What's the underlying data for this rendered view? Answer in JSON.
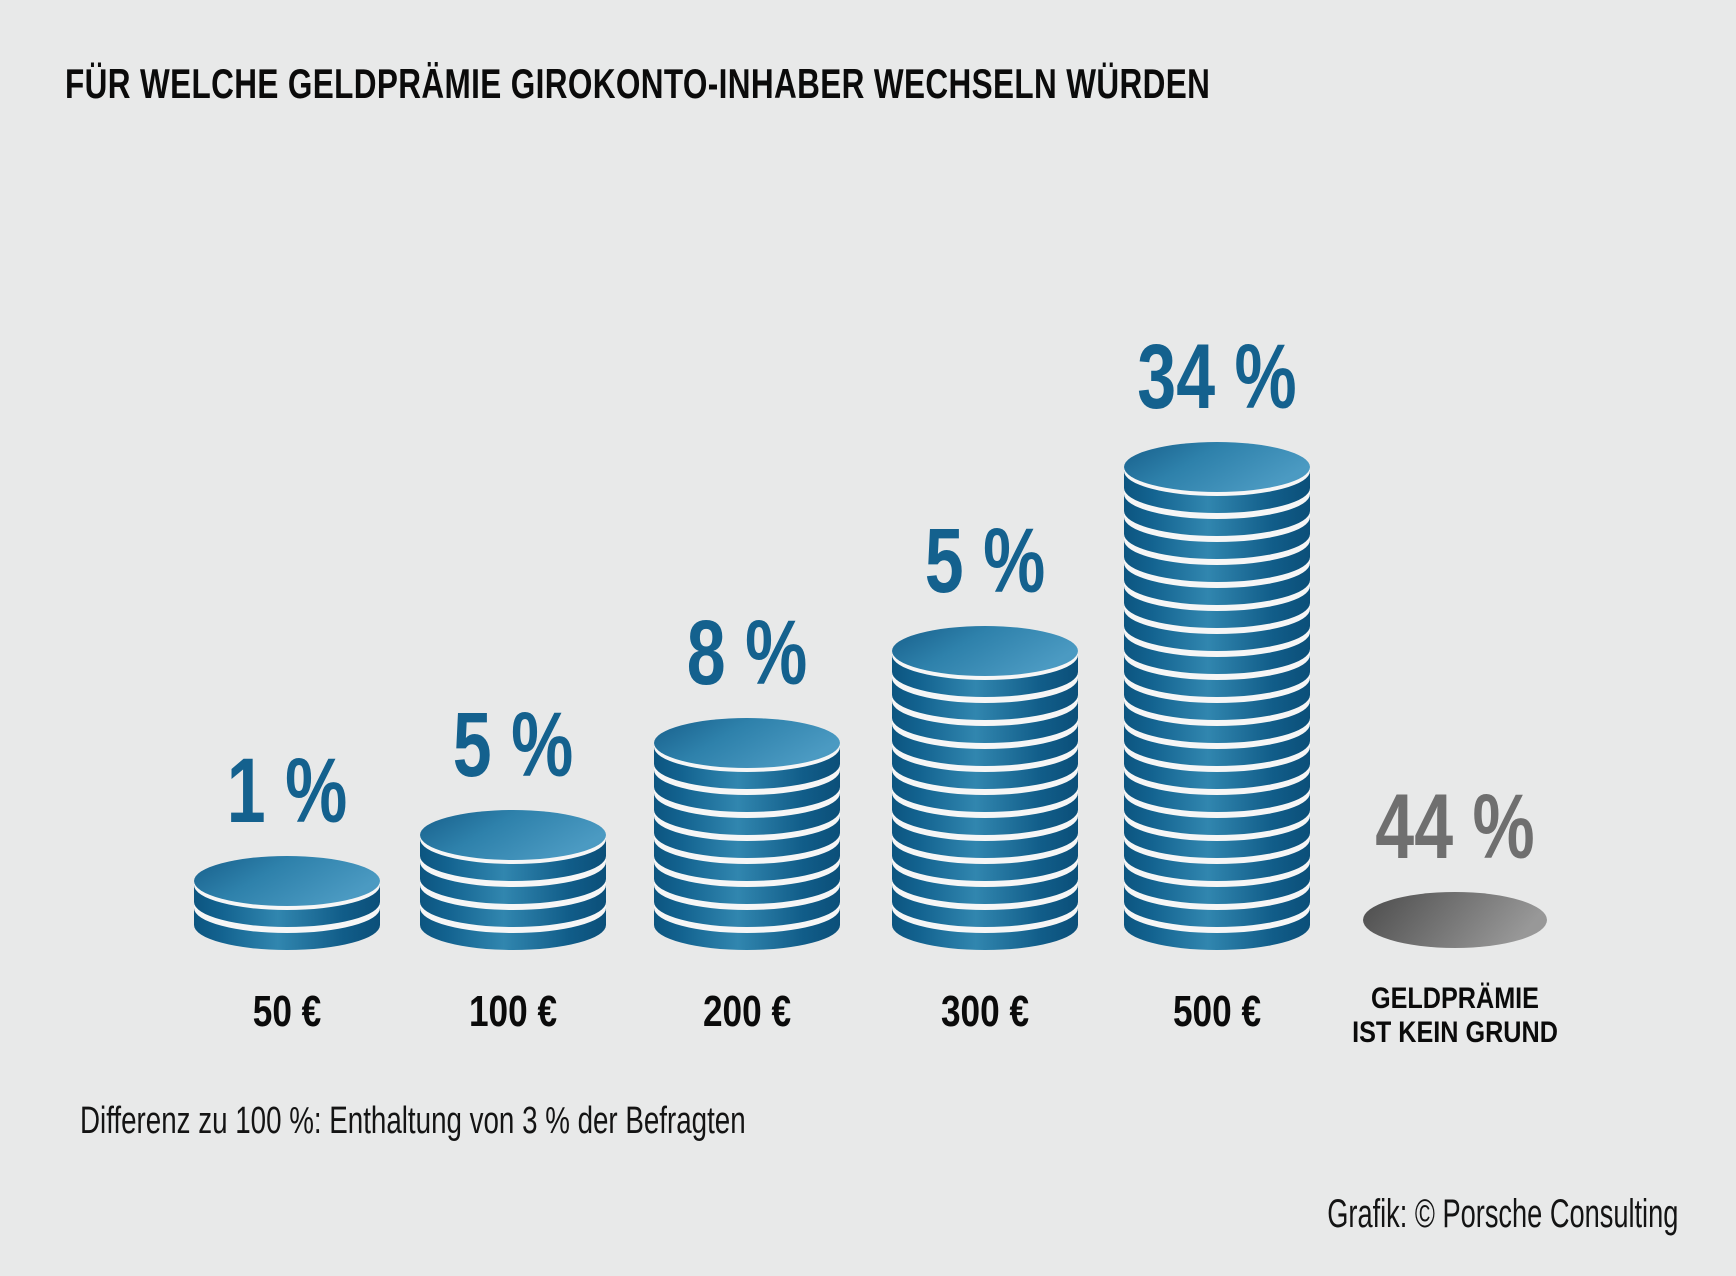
{
  "title": "FÜR WELCHE GELDPRÄMIE GIROKONTO-INHABER WECHSELN WÜRDEN",
  "footnote": "Differenz zu 100 %: Enthaltung von 3 % der Befragten",
  "credit": "Grafik: © Porsche Consulting",
  "colors": {
    "background": "#e8e9e9",
    "accent_blue": "#14618e",
    "coin_face_light": "#4b9ac2",
    "coin_face_dark": "#175f8b",
    "coin_side_dark": "#0c5580",
    "coin_gap_white": "#f6f6f6",
    "neutral_gray": "#6f6f6f",
    "text_black": "#0b0b0b"
  },
  "chart_data": {
    "type": "bar",
    "variant": "coin-stack pictogram",
    "title": "FÜR WELCHE GELDPRÄMIE GIROKONTO-INHABER WECHSELN WÜRDEN",
    "categories": [
      "50 €",
      "100 €",
      "200 €",
      "300 €",
      "500 €",
      "GELDPRÄMIE\nIST KEIN GRUND"
    ],
    "values_percent": [
      1,
      5,
      8,
      5,
      34,
      44
    ],
    "value_labels": [
      "1 %",
      "5 %",
      "8 %",
      "5 %",
      "34 %",
      "44 %"
    ],
    "columns": [
      {
        "category": "50 €",
        "value": 1,
        "value_label": "1 %",
        "coins": 2,
        "style": "blue"
      },
      {
        "category": "100 €",
        "value": 5,
        "value_label": "5 %",
        "coins": 4,
        "style": "blue"
      },
      {
        "category": "200 €",
        "value": 8,
        "value_label": "8 %",
        "coins": 8,
        "style": "blue"
      },
      {
        "category": "300 €",
        "value": 5,
        "value_label": "5 %",
        "coins": 12,
        "style": "blue"
      },
      {
        "category": "500 €",
        "value": 34,
        "value_label": "34 %",
        "coins": 20,
        "style": "blue"
      },
      {
        "category": "GELDPRÄMIE\nIST KEIN GRUND",
        "value": 44,
        "value_label": "44 %",
        "coins": 1,
        "style": "gray"
      }
    ],
    "footnote": "Differenz zu 100 %: Enthaltung von 3 % der Befragten",
    "credit": "Grafik: © Porsche Consulting",
    "legend": "none",
    "grid": "off",
    "note": "Stack height is proportional to the euro amount (1 coin per 25 €); gray flat coin = no switching for a cash bonus"
  }
}
